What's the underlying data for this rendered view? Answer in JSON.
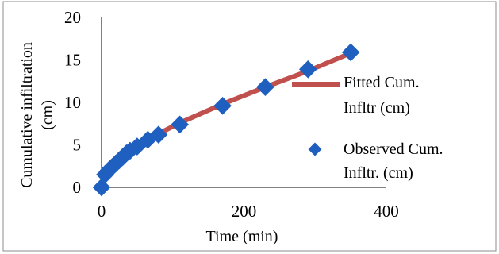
{
  "chart_data": {
    "type": "scatter",
    "xlabel": "Time (min)",
    "ylabel": "Cumulative infiltration (cm)",
    "xlim": [
      0,
      400
    ],
    "ylim": [
      0,
      20
    ],
    "xticks": [
      "0",
      "200",
      "400"
    ],
    "yticks": [
      "0",
      "5",
      "10",
      "15",
      "20"
    ],
    "grid": false,
    "legend_position": "right",
    "series": [
      {
        "name": "Fitted Cum. Infltr (cm)",
        "kind": "line",
        "color": "#c0504d",
        "x": [
          0,
          5,
          10,
          20,
          30,
          40,
          50,
          65,
          80,
          110,
          170,
          230,
          290,
          350
        ],
        "y": [
          0.2,
          1.4,
          2.0,
          2.9,
          3.6,
          4.2,
          4.8,
          5.6,
          6.3,
          7.6,
          9.8,
          11.8,
          13.7,
          15.8
        ]
      },
      {
        "name": "Observed Cum. Infltr. (cm)",
        "kind": "marker",
        "color": "#1f5fbf",
        "x": [
          0,
          5,
          10,
          15,
          20,
          25,
          30,
          35,
          40,
          50,
          65,
          80,
          110,
          170,
          230,
          290,
          350
        ],
        "y": [
          0,
          1.5,
          2.0,
          2.4,
          2.8,
          3.2,
          3.6,
          4.0,
          4.3,
          4.8,
          5.6,
          6.2,
          7.4,
          9.6,
          11.8,
          13.9,
          15.9
        ]
      }
    ]
  }
}
